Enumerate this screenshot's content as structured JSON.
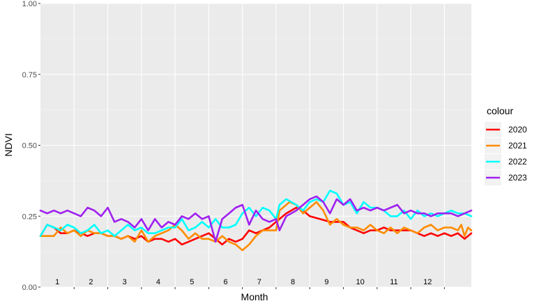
{
  "chart_data": {
    "type": "line",
    "xlabel": "Month",
    "ylabel": "NDVI",
    "ylim": [
      0,
      1
    ],
    "xlim": [
      1,
      13.8
    ],
    "yticks": [
      "0.00",
      "0.25",
      "0.50",
      "0.75",
      "1.00"
    ],
    "ytick_values": [
      0,
      0.25,
      0.5,
      0.75,
      1
    ],
    "month_labels": [
      "1",
      "2",
      "3",
      "4",
      "5",
      "6",
      "7",
      "8",
      "9",
      "10",
      "11",
      "12"
    ],
    "grid": true,
    "background": "#ebebeb",
    "legend": {
      "title": "colour",
      "position": "right"
    },
    "series": [
      {
        "name": "2020",
        "color": "#ff0000",
        "points": [
          [
            1.0,
            0.18
          ],
          [
            1.2,
            0.22
          ],
          [
            1.4,
            0.21
          ],
          [
            1.6,
            0.19
          ],
          [
            1.8,
            0.19
          ],
          [
            2.0,
            0.2
          ],
          [
            2.2,
            0.19
          ],
          [
            2.4,
            0.18
          ],
          [
            2.6,
            0.19
          ],
          [
            2.8,
            0.19
          ],
          [
            3.0,
            0.18
          ],
          [
            3.2,
            0.18
          ],
          [
            3.4,
            0.17
          ],
          [
            3.6,
            0.18
          ],
          [
            3.8,
            0.17
          ],
          [
            4.0,
            0.18
          ],
          [
            4.2,
            0.16
          ],
          [
            4.4,
            0.17
          ],
          [
            4.6,
            0.17
          ],
          [
            4.8,
            0.16
          ],
          [
            5.0,
            0.17
          ],
          [
            5.2,
            0.15
          ],
          [
            5.4,
            0.16
          ],
          [
            5.6,
            0.17
          ],
          [
            5.8,
            0.18
          ],
          [
            6.0,
            0.19
          ],
          [
            6.2,
            0.17
          ],
          [
            6.4,
            0.15
          ],
          [
            6.6,
            0.17
          ],
          [
            6.8,
            0.16
          ],
          [
            7.0,
            0.17
          ],
          [
            7.2,
            0.2
          ],
          [
            7.4,
            0.19
          ],
          [
            7.6,
            0.2
          ],
          [
            7.8,
            0.21
          ],
          [
            8.0,
            0.23
          ],
          [
            8.3,
            0.26
          ],
          [
            8.6,
            0.28
          ],
          [
            8.8,
            0.27
          ],
          [
            9.0,
            0.25
          ],
          [
            9.3,
            0.24
          ],
          [
            9.6,
            0.23
          ],
          [
            9.8,
            0.23
          ],
          [
            10.0,
            0.23
          ],
          [
            10.2,
            0.21
          ],
          [
            10.4,
            0.2
          ],
          [
            10.6,
            0.19
          ],
          [
            10.8,
            0.2
          ],
          [
            11.0,
            0.2
          ],
          [
            11.2,
            0.21
          ],
          [
            11.4,
            0.2
          ],
          [
            11.6,
            0.2
          ],
          [
            11.8,
            0.2
          ],
          [
            12.0,
            0.2
          ],
          [
            12.2,
            0.19
          ],
          [
            12.4,
            0.18
          ],
          [
            12.6,
            0.19
          ],
          [
            12.8,
            0.18
          ],
          [
            13.0,
            0.19
          ],
          [
            13.2,
            0.18
          ],
          [
            13.4,
            0.19
          ],
          [
            13.6,
            0.17
          ],
          [
            13.8,
            0.19
          ]
        ]
      },
      {
        "name": "2021",
        "color": "#ff8c00",
        "points": [
          [
            1.0,
            0.18
          ],
          [
            1.2,
            0.18
          ],
          [
            1.4,
            0.18
          ],
          [
            1.6,
            0.21
          ],
          [
            1.8,
            0.19
          ],
          [
            2.0,
            0.2
          ],
          [
            2.2,
            0.18
          ],
          [
            2.4,
            0.2
          ],
          [
            2.6,
            0.19
          ],
          [
            2.8,
            0.19
          ],
          [
            3.0,
            0.18
          ],
          [
            3.2,
            0.18
          ],
          [
            3.4,
            0.17
          ],
          [
            3.6,
            0.18
          ],
          [
            3.8,
            0.16
          ],
          [
            4.0,
            0.2
          ],
          [
            4.2,
            0.16
          ],
          [
            4.4,
            0.18
          ],
          [
            4.6,
            0.19
          ],
          [
            4.8,
            0.2
          ],
          [
            5.0,
            0.22
          ],
          [
            5.2,
            0.2
          ],
          [
            5.4,
            0.17
          ],
          [
            5.6,
            0.19
          ],
          [
            5.8,
            0.17
          ],
          [
            6.0,
            0.17
          ],
          [
            6.2,
            0.16
          ],
          [
            6.4,
            0.18
          ],
          [
            6.6,
            0.16
          ],
          [
            6.8,
            0.15
          ],
          [
            7.0,
            0.13
          ],
          [
            7.2,
            0.15
          ],
          [
            7.4,
            0.18
          ],
          [
            7.6,
            0.2
          ],
          [
            7.8,
            0.2
          ],
          [
            8.0,
            0.2
          ],
          [
            8.1,
            0.27
          ],
          [
            8.4,
            0.3
          ],
          [
            8.6,
            0.29
          ],
          [
            8.8,
            0.26
          ],
          [
            9.0,
            0.28
          ],
          [
            9.2,
            0.3
          ],
          [
            9.4,
            0.27
          ],
          [
            9.6,
            0.22
          ],
          [
            9.8,
            0.24
          ],
          [
            10.0,
            0.22
          ],
          [
            10.2,
            0.21
          ],
          [
            10.4,
            0.21
          ],
          [
            10.6,
            0.2
          ],
          [
            10.8,
            0.22
          ],
          [
            11.0,
            0.2
          ],
          [
            11.2,
            0.19
          ],
          [
            11.4,
            0.21
          ],
          [
            11.6,
            0.19
          ],
          [
            11.8,
            0.21
          ],
          [
            12.0,
            0.2
          ],
          [
            12.2,
            0.19
          ],
          [
            12.4,
            0.21
          ],
          [
            12.6,
            0.22
          ],
          [
            12.8,
            0.2
          ],
          [
            13.0,
            0.21
          ],
          [
            13.2,
            0.21
          ],
          [
            13.4,
            0.2
          ],
          [
            13.5,
            0.22
          ],
          [
            13.6,
            0.18
          ],
          [
            13.7,
            0.21
          ],
          [
            13.8,
            0.2
          ]
        ]
      },
      {
        "name": "2022",
        "color": "#00ffff",
        "points": [
          [
            1.0,
            0.18
          ],
          [
            1.2,
            0.22
          ],
          [
            1.4,
            0.21
          ],
          [
            1.6,
            0.2
          ],
          [
            1.8,
            0.22
          ],
          [
            2.0,
            0.21
          ],
          [
            2.2,
            0.19
          ],
          [
            2.4,
            0.2
          ],
          [
            2.6,
            0.22
          ],
          [
            2.8,
            0.19
          ],
          [
            3.0,
            0.2
          ],
          [
            3.2,
            0.18
          ],
          [
            3.4,
            0.2
          ],
          [
            3.6,
            0.22
          ],
          [
            3.8,
            0.2
          ],
          [
            4.0,
            0.21
          ],
          [
            4.2,
            0.19
          ],
          [
            4.4,
            0.19
          ],
          [
            4.6,
            0.2
          ],
          [
            4.8,
            0.21
          ],
          [
            5.0,
            0.21
          ],
          [
            5.2,
            0.24
          ],
          [
            5.4,
            0.2
          ],
          [
            5.6,
            0.21
          ],
          [
            5.8,
            0.23
          ],
          [
            6.0,
            0.21
          ],
          [
            6.2,
            0.24
          ],
          [
            6.4,
            0.21
          ],
          [
            6.6,
            0.21
          ],
          [
            6.8,
            0.22
          ],
          [
            7.0,
            0.26
          ],
          [
            7.2,
            0.28
          ],
          [
            7.4,
            0.25
          ],
          [
            7.6,
            0.28
          ],
          [
            7.8,
            0.27
          ],
          [
            8.0,
            0.24
          ],
          [
            8.1,
            0.29
          ],
          [
            8.3,
            0.31
          ],
          [
            8.6,
            0.29
          ],
          [
            8.8,
            0.27
          ],
          [
            9.0,
            0.3
          ],
          [
            9.2,
            0.31
          ],
          [
            9.4,
            0.3
          ],
          [
            9.6,
            0.34
          ],
          [
            9.8,
            0.33
          ],
          [
            10.0,
            0.29
          ],
          [
            10.2,
            0.3
          ],
          [
            10.4,
            0.26
          ],
          [
            10.6,
            0.3
          ],
          [
            10.8,
            0.28
          ],
          [
            11.0,
            0.28
          ],
          [
            11.2,
            0.27
          ],
          [
            11.4,
            0.25
          ],
          [
            11.6,
            0.25
          ],
          [
            11.8,
            0.27
          ],
          [
            12.0,
            0.24
          ],
          [
            12.2,
            0.27
          ],
          [
            12.4,
            0.25
          ],
          [
            12.6,
            0.26
          ],
          [
            12.8,
            0.25
          ],
          [
            13.0,
            0.26
          ],
          [
            13.2,
            0.27
          ],
          [
            13.4,
            0.26
          ],
          [
            13.6,
            0.26
          ],
          [
            13.8,
            0.25
          ]
        ]
      },
      {
        "name": "2023",
        "color": "#a020f0",
        "points": [
          [
            1.0,
            0.27
          ],
          [
            1.2,
            0.26
          ],
          [
            1.4,
            0.27
          ],
          [
            1.6,
            0.26
          ],
          [
            1.8,
            0.27
          ],
          [
            2.0,
            0.26
          ],
          [
            2.2,
            0.25
          ],
          [
            2.4,
            0.28
          ],
          [
            2.6,
            0.27
          ],
          [
            2.8,
            0.25
          ],
          [
            3.0,
            0.28
          ],
          [
            3.2,
            0.23
          ],
          [
            3.4,
            0.24
          ],
          [
            3.6,
            0.23
          ],
          [
            3.8,
            0.21
          ],
          [
            4.0,
            0.24
          ],
          [
            4.2,
            0.2
          ],
          [
            4.4,
            0.24
          ],
          [
            4.6,
            0.21
          ],
          [
            4.8,
            0.23
          ],
          [
            5.0,
            0.22
          ],
          [
            5.2,
            0.25
          ],
          [
            5.4,
            0.24
          ],
          [
            5.6,
            0.26
          ],
          [
            5.8,
            0.24
          ],
          [
            6.0,
            0.25
          ],
          [
            6.2,
            0.16
          ],
          [
            6.4,
            0.24
          ],
          [
            6.6,
            0.26
          ],
          [
            6.8,
            0.28
          ],
          [
            7.0,
            0.29
          ],
          [
            7.2,
            0.22
          ],
          [
            7.4,
            0.27
          ],
          [
            7.6,
            0.24
          ],
          [
            7.8,
            0.23
          ],
          [
            8.0,
            0.24
          ],
          [
            8.1,
            0.2
          ],
          [
            8.3,
            0.25
          ],
          [
            8.6,
            0.27
          ],
          [
            8.8,
            0.29
          ],
          [
            9.0,
            0.31
          ],
          [
            9.2,
            0.32
          ],
          [
            9.4,
            0.3
          ],
          [
            9.6,
            0.26
          ],
          [
            9.8,
            0.31
          ],
          [
            10.0,
            0.29
          ],
          [
            10.2,
            0.31
          ],
          [
            10.4,
            0.27
          ],
          [
            10.6,
            0.28
          ],
          [
            10.8,
            0.27
          ],
          [
            11.0,
            0.28
          ],
          [
            11.2,
            0.27
          ],
          [
            11.4,
            0.28
          ],
          [
            11.6,
            0.29
          ],
          [
            11.8,
            0.26
          ],
          [
            12.0,
            0.27
          ],
          [
            12.2,
            0.26
          ],
          [
            12.4,
            0.26
          ],
          [
            12.6,
            0.25
          ],
          [
            12.8,
            0.26
          ],
          [
            13.0,
            0.26
          ],
          [
            13.2,
            0.26
          ],
          [
            13.4,
            0.25
          ],
          [
            13.6,
            0.26
          ],
          [
            13.8,
            0.27
          ]
        ]
      }
    ]
  }
}
